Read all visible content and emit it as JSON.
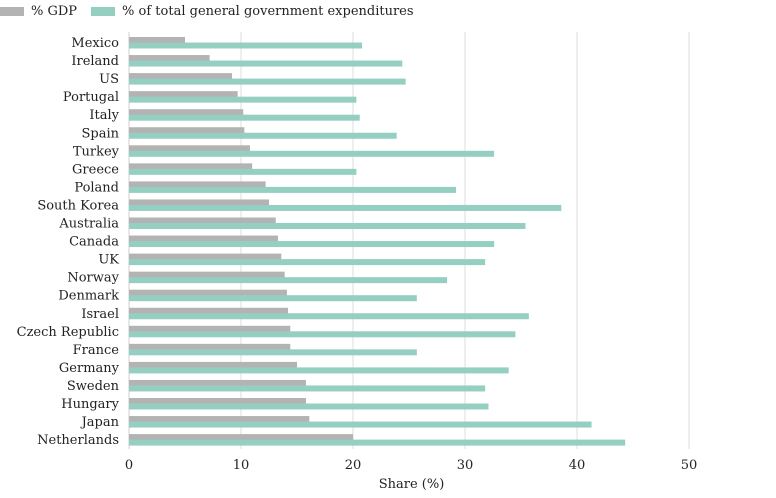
{
  "colors": {
    "gdp": "#b3b3b3",
    "expenditure": "#94cfc2",
    "grid": "#dcdcdc"
  },
  "chart_data": {
    "type": "bar",
    "orientation": "horizontal",
    "xlabel": "Share (%)",
    "xlim": [
      0,
      52
    ],
    "xticks": [
      0,
      10,
      20,
      30,
      40,
      50
    ],
    "grid": "vertical",
    "legend": "top-left",
    "categories": [
      "Mexico",
      "Ireland",
      "US",
      "Portugal",
      "Italy",
      "Spain",
      "Turkey",
      "Greece",
      "Poland",
      "South Korea",
      "Australia",
      "Canada",
      "UK",
      "Norway",
      "Denmark",
      "Israel",
      "Czech Republic",
      "France",
      "Germany",
      "Sweden",
      "Hungary",
      "Japan",
      "Netherlands"
    ],
    "series": [
      {
        "name": "% GDP",
        "values": [
          5.0,
          7.2,
          9.2,
          9.7,
          10.2,
          10.3,
          10.8,
          11.0,
          12.2,
          12.5,
          13.1,
          13.3,
          13.6,
          13.9,
          14.1,
          14.2,
          14.4,
          14.4,
          15.0,
          15.8,
          15.8,
          16.1,
          20.0
        ]
      },
      {
        "name": "% of total general government expenditures",
        "values": [
          20.8,
          24.4,
          24.7,
          20.3,
          20.6,
          23.9,
          32.6,
          20.3,
          29.2,
          38.6,
          35.4,
          32.6,
          31.8,
          28.4,
          25.7,
          35.7,
          34.5,
          25.7,
          33.9,
          31.8,
          32.1,
          41.3,
          44.3
        ]
      }
    ]
  }
}
